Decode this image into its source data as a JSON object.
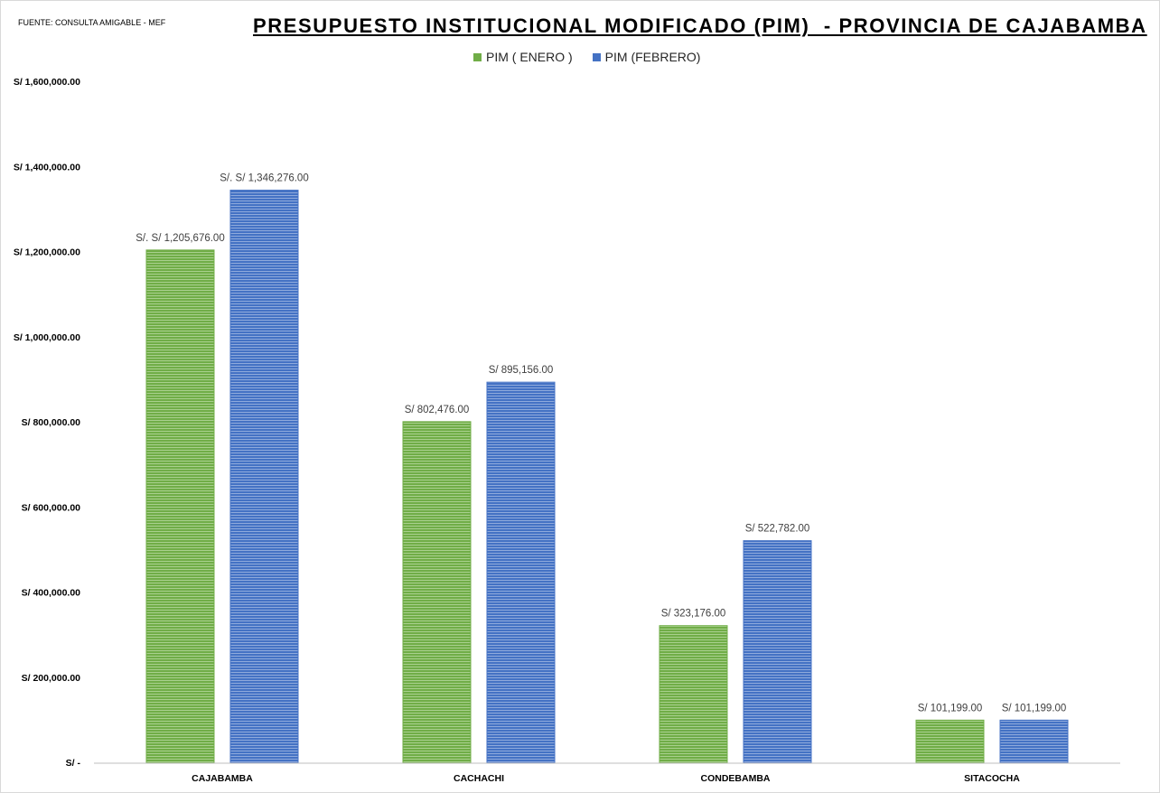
{
  "source": "FUENTE:  CONSULTA AMIGABLE - MEF",
  "title": "PRESUPUESTO INSTITUCIONAL MODIFICADO (PIM)  - PROVINCIA DE CAJABAMBA",
  "colors": {
    "enero": "#70ad47",
    "febrero": "#4472c4"
  },
  "chart_data": {
    "type": "bar",
    "categories": [
      "CAJABAMBA",
      "CACHACHI",
      "CONDEBAMBA",
      "SITACOCHA"
    ],
    "series": [
      {
        "name": "PIM ( ENERO )",
        "values": [
          1205676,
          802476,
          323176,
          101199
        ],
        "labels": [
          "S/.  S/ 1,205,676.00",
          "S/ 802,476.00",
          "S/ 323,176.00",
          "S/ 101,199.00"
        ],
        "color": "#70ad47"
      },
      {
        "name": "PIM (FEBRERO)",
        "values": [
          1346276,
          895156,
          522782,
          101199
        ],
        "labels": [
          "S/.  S/ 1,346,276.00",
          "S/ 895,156.00",
          "S/ 522,782.00",
          "S/ 101,199.00"
        ],
        "color": "#4472c4"
      }
    ],
    "ylim": [
      0,
      1600000
    ],
    "yticks": [
      0,
      200000,
      400000,
      600000,
      800000,
      1000000,
      1200000,
      1400000,
      1600000
    ],
    "ytick_labels": [
      "S/  -",
      "S/ 200,000.00",
      "S/ 400,000.00",
      "S/ 600,000.00",
      "S/ 800,000.00",
      "S/ 1,000,000.00",
      "S/ 1,200,000.00",
      "S/ 1,400,000.00",
      "S/ 1,600,000.00"
    ],
    "grid": false,
    "legend": "top-center"
  }
}
